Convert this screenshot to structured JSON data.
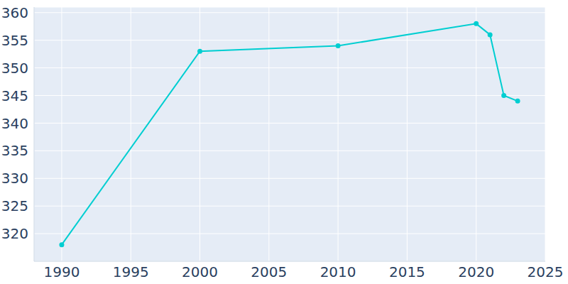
{
  "chart_data": {
    "type": "line",
    "x": [
      1990,
      2000,
      2010,
      2020,
      2021,
      2022,
      2023
    ],
    "values": [
      318,
      353,
      354,
      358,
      356,
      345,
      344
    ],
    "color": "#00ced1",
    "marker": "circle",
    "xlim": [
      1988,
      2025
    ],
    "xticks": [
      1990,
      1995,
      2000,
      2005,
      2010,
      2015,
      2020,
      2025
    ],
    "ylim": [
      315,
      361
    ],
    "yticks": [
      320,
      325,
      330,
      335,
      340,
      345,
      350,
      355,
      360
    ],
    "grid": true
  }
}
